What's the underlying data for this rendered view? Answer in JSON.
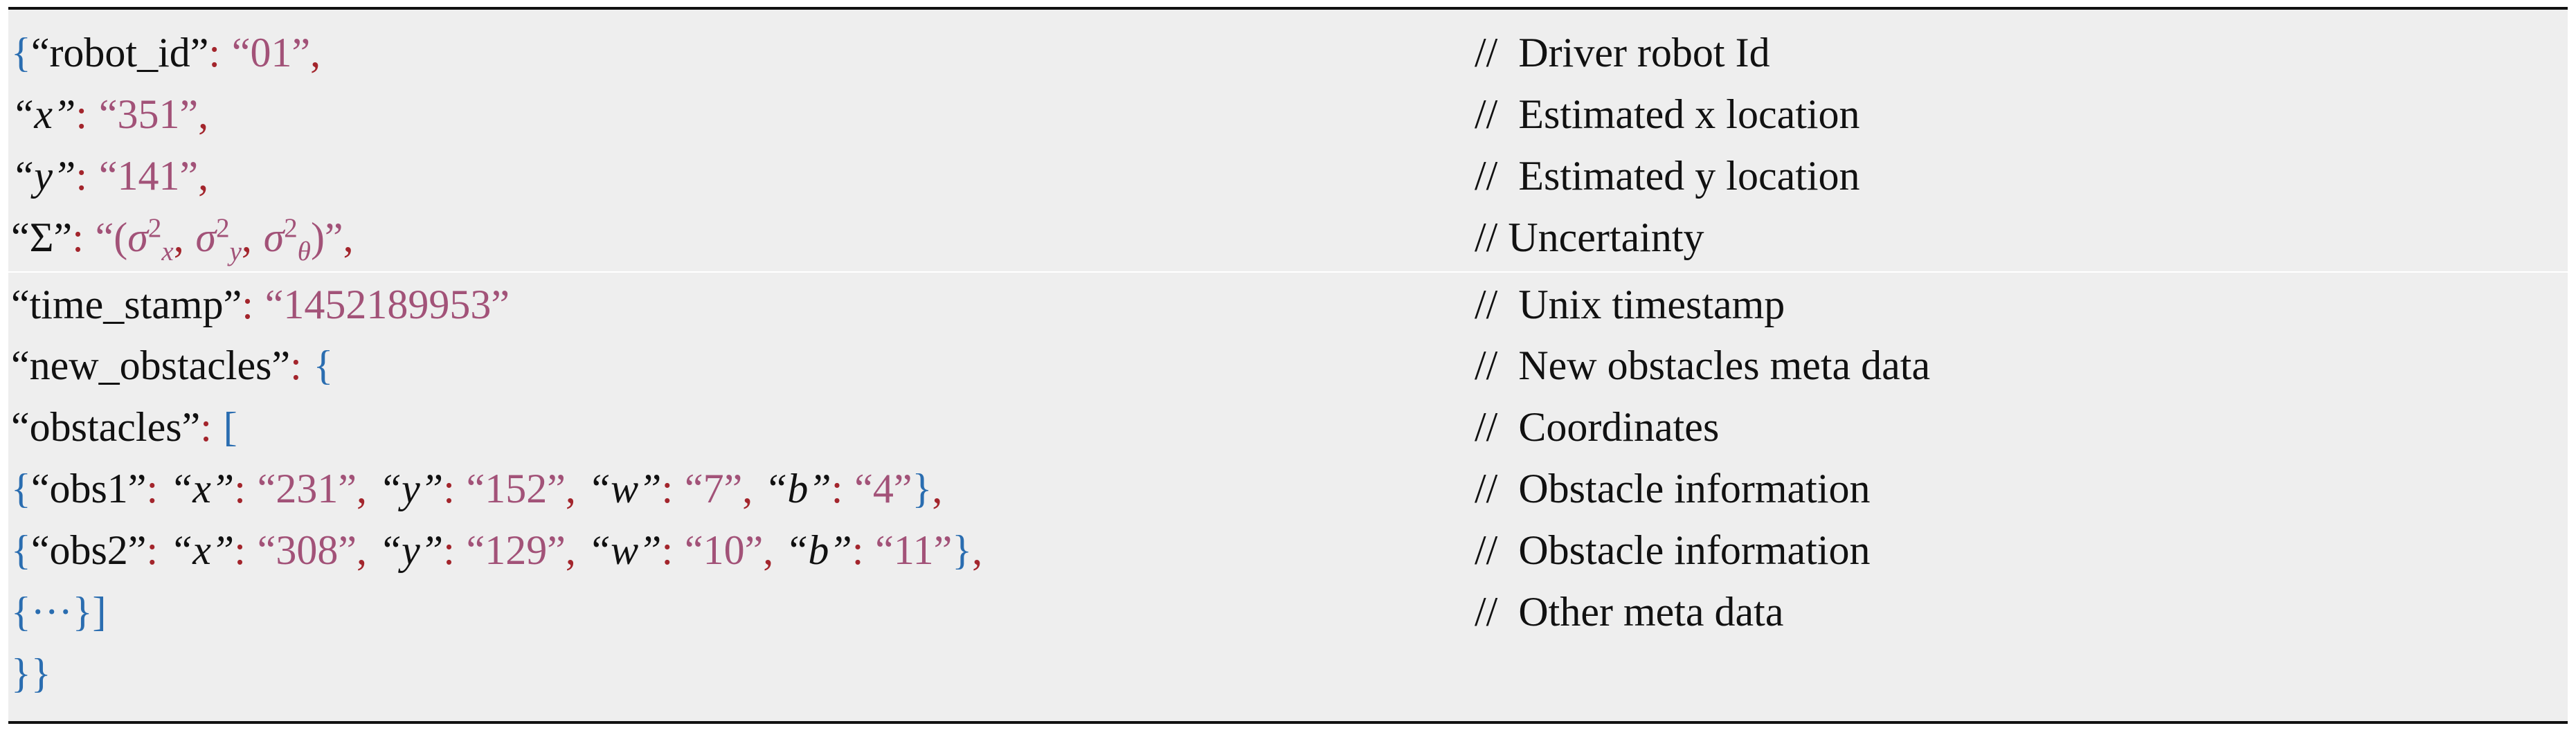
{
  "rows": [
    {
      "code": [
        "{",
        "“robot_id”",
        ":",
        "“01”",
        ","
      ],
      "comment": "//  Driver robot Id"
    },
    {
      "code": [
        "“x”",
        ":",
        "“351”",
        ","
      ],
      "comment": "//  Estimated x location"
    },
    {
      "code": [
        "“y”",
        ":",
        "“141”",
        ","
      ],
      "comment": "//  Estimated y location"
    },
    {
      "code": [
        "“Σ”",
        ":",
        "“(",
        {
          "base": "σ",
          "sup": "2",
          "sub": "x"
        },
        ",",
        {
          "base": "σ",
          "sup": "2",
          "sub": "y"
        },
        ",",
        {
          "base": "σ",
          "sup": "2",
          "sub": "θ"
        },
        ")”",
        ","
      ],
      "comment": "// Uncertainty"
    },
    {
      "code": [
        "“time_stamp”",
        ":",
        "“1452189953”"
      ],
      "comment": "//  Unix timestamp"
    },
    {
      "code": [
        "“new_obstacles”",
        ":",
        "{"
      ],
      "comment": "//  New obstacles meta data"
    },
    {
      "code": [
        "“obstacles”",
        ":",
        "["
      ],
      "comment": "//  Coordinates"
    },
    {
      "code": [
        "{",
        "“obs1”",
        ":",
        "“x”",
        ":",
        "“231”",
        ",",
        "“y”",
        ":",
        "“152”",
        ",",
        "“w”",
        ":",
        "“7”",
        ",",
        "“b”",
        ":",
        "“4”",
        "}",
        ","
      ],
      "comment": "//  Obstacle information"
    },
    {
      "code": [
        "{",
        "“obs2”",
        ":",
        "“x”",
        ":",
        "“308”",
        ",",
        "“y”",
        ":",
        "“129”",
        ",",
        "“w”",
        ":",
        "“10”",
        ",",
        "“b”",
        ":",
        "“11”",
        "}",
        ","
      ],
      "comment": "//  Obstacle information"
    },
    {
      "code": [
        "{···}",
        "]"
      ],
      "comment": "//  Other meta data"
    },
    {
      "code": [
        "}",
        "}"
      ]
    }
  ]
}
